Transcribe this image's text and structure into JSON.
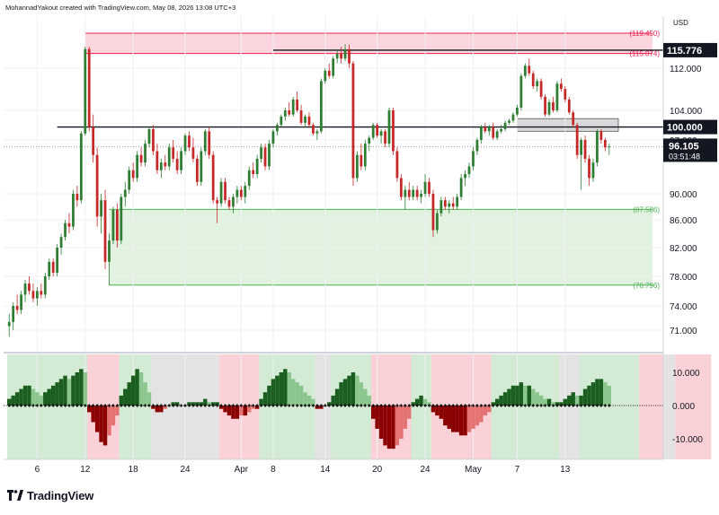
{
  "header": {
    "credit": "MohannadYakout created with TradingView.com, May 08, 2026 13:08 UTC+3"
  },
  "footer": {
    "logo_text": "TradingView"
  },
  "price_axis": {
    "currency": "USD",
    "last_price": "96.105",
    "countdown": "03:51:48",
    "badge_high": "115.776",
    "badge_level": "100.000"
  },
  "chart_data": [
    {
      "type": "candlestick",
      "title": "",
      "x_ticks": [
        "6",
        "12",
        "18",
        "24",
        "Apr",
        "8",
        "14",
        "20",
        "24",
        "May",
        "7",
        "13"
      ],
      "y_ticks": [
        "112.000",
        "104.000",
        "97.000",
        "90.000",
        "86.000",
        "82.000",
        "78.000",
        "74.000",
        "71.000"
      ],
      "ylim": [
        69,
        121
      ],
      "zones": [
        {
          "kind": "supply",
          "top": 119.45,
          "bottom": 115.074,
          "top_label": "(119.450)",
          "bottom_label": "(115.074)",
          "color": "#e91e4c"
        },
        {
          "kind": "demand",
          "top": 87.586,
          "bottom": 76.796,
          "top_label": "(87.586)",
          "bottom_label": "(76.796)",
          "color": "#4caf50"
        }
      ],
      "levels": [
        {
          "value": 115.776,
          "label": "115.776"
        },
        {
          "value": 100.0,
          "label": "100.000"
        }
      ],
      "last_price": 96.105,
      "candles": [
        [
          71.5,
          73.0,
          70.0,
          72.0
        ],
        [
          72.0,
          74.5,
          71.0,
          74.0
        ],
        [
          74.0,
          75.5,
          73.0,
          73.5
        ],
        [
          73.5,
          76.0,
          73.0,
          75.5
        ],
        [
          75.5,
          77.5,
          74.5,
          77.0
        ],
        [
          77.0,
          78.0,
          75.5,
          76.0
        ],
        [
          76.0,
          77.0,
          74.5,
          75.0
        ],
        [
          75.0,
          76.5,
          74.0,
          76.0
        ],
        [
          76.0,
          77.0,
          75.0,
          75.5
        ],
        [
          75.5,
          78.5,
          75.0,
          78.0
        ],
        [
          78.0,
          80.5,
          77.5,
          80.0
        ],
        [
          80.0,
          80.5,
          78.0,
          78.5
        ],
        [
          78.5,
          82.5,
          78.0,
          82.0
        ],
        [
          82.0,
          84.0,
          81.0,
          83.5
        ],
        [
          83.5,
          86.0,
          83.0,
          85.5
        ],
        [
          85.5,
          87.0,
          84.0,
          85.0
        ],
        [
          85.0,
          90.5,
          84.5,
          90.0
        ],
        [
          90.0,
          91.0,
          88.0,
          89.0
        ],
        [
          89.0,
          99.0,
          88.5,
          98.5
        ],
        [
          98.5,
          116.5,
          98.0,
          116.0
        ],
        [
          116.0,
          116.5,
          99.0,
          100.0
        ],
        [
          100.0,
          103.0,
          94.0,
          95.0
        ],
        [
          95.0,
          96.0,
          85.0,
          86.5
        ],
        [
          86.5,
          90.0,
          84.0,
          89.0
        ],
        [
          89.0,
          90.5,
          79.0,
          80.0
        ],
        [
          80.0,
          84.0,
          76.8,
          83.0
        ],
        [
          83.0,
          88.0,
          82.5,
          87.5
        ],
        [
          87.5,
          88.5,
          82.0,
          83.0
        ],
        [
          83.0,
          90.0,
          82.5,
          89.5
        ],
        [
          89.5,
          91.5,
          88.0,
          90.5
        ],
        [
          90.5,
          93.5,
          90.0,
          93.0
        ],
        [
          93.0,
          94.0,
          91.5,
          92.0
        ],
        [
          92.0,
          95.5,
          91.5,
          95.0
        ],
        [
          95.0,
          96.0,
          93.5,
          94.0
        ],
        [
          94.0,
          97.0,
          93.5,
          96.5
        ],
        [
          96.5,
          100.0,
          96.0,
          99.5
        ],
        [
          99.5,
          100.5,
          95.0,
          95.5
        ],
        [
          95.5,
          96.5,
          92.5,
          93.0
        ],
        [
          93.0,
          94.5,
          92.0,
          94.0
        ],
        [
          94.0,
          95.0,
          93.0,
          93.5
        ],
        [
          93.5,
          96.5,
          93.0,
          96.0
        ],
        [
          96.0,
          97.0,
          94.0,
          94.5
        ],
        [
          94.5,
          95.5,
          92.5,
          93.0
        ],
        [
          93.0,
          96.0,
          92.5,
          95.5
        ],
        [
          95.5,
          98.5,
          95.0,
          98.0
        ],
        [
          98.0,
          99.0,
          95.5,
          96.0
        ],
        [
          96.0,
          97.5,
          94.0,
          94.5
        ],
        [
          94.5,
          95.0,
          91.0,
          91.5
        ],
        [
          91.5,
          96.0,
          91.0,
          95.5
        ],
        [
          95.5,
          99.5,
          95.0,
          99.0
        ],
        [
          99.0,
          100.0,
          94.5,
          95.0
        ],
        [
          95.0,
          95.5,
          88.5,
          89.0
        ],
        [
          89.0,
          89.5,
          85.5,
          88.5
        ],
        [
          88.5,
          92.0,
          88.0,
          91.5
        ],
        [
          91.5,
          92.0,
          88.5,
          89.0
        ],
        [
          89.0,
          89.5,
          87.5,
          88.0
        ],
        [
          88.0,
          90.0,
          87.0,
          89.5
        ],
        [
          89.5,
          91.0,
          88.5,
          90.5
        ],
        [
          90.5,
          91.0,
          89.0,
          89.5
        ],
        [
          89.5,
          91.5,
          88.5,
          91.0
        ],
        [
          91.0,
          93.5,
          90.5,
          93.0
        ],
        [
          93.0,
          94.0,
          92.0,
          92.5
        ],
        [
          92.5,
          95.0,
          92.0,
          94.5
        ],
        [
          94.5,
          96.5,
          94.0,
          96.0
        ],
        [
          96.0,
          96.5,
          93.0,
          93.5
        ],
        [
          93.5,
          97.0,
          93.0,
          96.5
        ],
        [
          96.5,
          99.5,
          96.0,
          99.0
        ],
        [
          99.0,
          101.0,
          98.0,
          100.5
        ],
        [
          100.5,
          103.0,
          100.0,
          102.5
        ],
        [
          102.5,
          104.5,
          101.5,
          104.0
        ],
        [
          104.0,
          105.5,
          102.5,
          103.0
        ],
        [
          103.0,
          106.5,
          102.5,
          106.0
        ],
        [
          106.0,
          107.5,
          103.5,
          104.0
        ],
        [
          104.0,
          105.0,
          100.5,
          101.0
        ],
        [
          101.0,
          103.0,
          100.0,
          102.5
        ],
        [
          102.5,
          103.5,
          100.0,
          100.5
        ],
        [
          100.5,
          101.0,
          98.0,
          98.5
        ],
        [
          98.5,
          99.5,
          97.0,
          99.0
        ],
        [
          99.0,
          110.0,
          98.5,
          109.5
        ],
        [
          109.5,
          112.0,
          109.0,
          111.5
        ],
        [
          111.5,
          113.0,
          110.0,
          110.5
        ],
        [
          110.5,
          114.5,
          110.0,
          114.0
        ],
        [
          114.0,
          116.0,
          113.0,
          115.0
        ],
        [
          115.0,
          116.5,
          113.0,
          114.0
        ],
        [
          114.0,
          117.0,
          113.5,
          116.0
        ],
        [
          116.0,
          117.0,
          112.0,
          113.0
        ],
        [
          113.0,
          113.5,
          91.0,
          92.0
        ],
        [
          92.0,
          95.5,
          91.5,
          95.0
        ],
        [
          95.0,
          96.5,
          93.0,
          93.5
        ],
        [
          93.5,
          97.0,
          93.0,
          96.5
        ],
        [
          96.5,
          98.0,
          95.5,
          97.5
        ],
        [
          97.5,
          101.0,
          97.0,
          100.5
        ],
        [
          100.5,
          101.0,
          97.5,
          98.0
        ],
        [
          98.0,
          99.5,
          96.5,
          99.0
        ],
        [
          99.0,
          99.5,
          96.0,
          96.5
        ],
        [
          96.5,
          104.5,
          96.0,
          104.0
        ],
        [
          104.0,
          104.5,
          95.0,
          95.5
        ],
        [
          95.5,
          96.0,
          91.5,
          92.0
        ],
        [
          92.0,
          92.5,
          89.0,
          89.5
        ],
        [
          89.5,
          91.0,
          87.5,
          90.5
        ],
        [
          90.5,
          91.5,
          89.0,
          89.5
        ],
        [
          89.5,
          91.0,
          89.0,
          90.5
        ],
        [
          90.5,
          91.0,
          89.0,
          89.5
        ],
        [
          89.5,
          90.5,
          88.5,
          90.0
        ],
        [
          90.0,
          92.5,
          89.5,
          91.5
        ],
        [
          91.5,
          92.0,
          89.5,
          90.0
        ],
        [
          90.0,
          90.5,
          83.5,
          84.5
        ],
        [
          84.5,
          87.5,
          84.0,
          87.0
        ],
        [
          87.0,
          89.5,
          86.5,
          89.0
        ],
        [
          89.0,
          89.5,
          87.5,
          88.0
        ],
        [
          88.0,
          89.0,
          87.0,
          88.5
        ],
        [
          88.5,
          89.5,
          87.5,
          88.0
        ],
        [
          88.0,
          90.0,
          87.5,
          89.5
        ],
        [
          89.5,
          92.5,
          89.0,
          92.0
        ],
        [
          92.0,
          93.0,
          91.0,
          92.5
        ],
        [
          92.5,
          94.0,
          92.0,
          93.5
        ],
        [
          93.5,
          96.0,
          93.0,
          95.5
        ],
        [
          95.5,
          97.5,
          95.0,
          97.0
        ],
        [
          97.0,
          100.5,
          96.5,
          100.0
        ],
        [
          100.0,
          101.0,
          98.5,
          99.0
        ],
        [
          99.0,
          100.5,
          98.0,
          100.0
        ],
        [
          100.0,
          101.0,
          97.0,
          97.5
        ],
        [
          97.5,
          99.5,
          97.0,
          99.0
        ],
        [
          99.0,
          100.5,
          98.5,
          99.5
        ],
        [
          99.5,
          101.5,
          99.0,
          101.0
        ],
        [
          101.0,
          102.0,
          100.5,
          101.5
        ],
        [
          101.5,
          103.5,
          101.0,
          103.0
        ],
        [
          103.0,
          105.0,
          102.5,
          104.5
        ],
        [
          104.5,
          111.0,
          104.0,
          110.5
        ],
        [
          110.5,
          113.0,
          110.0,
          112.5
        ],
        [
          112.5,
          114.0,
          110.5,
          111.0
        ],
        [
          111.0,
          111.5,
          108.0,
          108.5
        ],
        [
          108.5,
          110.0,
          107.5,
          109.5
        ],
        [
          109.5,
          110.0,
          106.0,
          106.5
        ],
        [
          106.5,
          107.0,
          102.5,
          103.0
        ],
        [
          103.0,
          106.0,
          102.5,
          105.5
        ],
        [
          105.5,
          106.5,
          103.5,
          104.0
        ],
        [
          104.0,
          109.5,
          103.5,
          109.0
        ],
        [
          109.0,
          110.0,
          107.5,
          108.0
        ],
        [
          108.0,
          108.5,
          105.5,
          106.0
        ],
        [
          106.0,
          106.5,
          103.0,
          103.5
        ],
        [
          103.5,
          104.0,
          100.0,
          100.5
        ],
        [
          100.5,
          101.0,
          94.5,
          95.0
        ],
        [
          95.0,
          97.5,
          90.5,
          97.0
        ],
        [
          97.0,
          98.0,
          94.0,
          94.5
        ],
        [
          94.5,
          95.0,
          91.0,
          92.0
        ],
        [
          92.0,
          94.5,
          91.5,
          94.0
        ],
        [
          94.0,
          99.5,
          93.5,
          99.0
        ],
        [
          99.0,
          99.5,
          96.5,
          97.0
        ],
        [
          97.0,
          97.5,
          95.5,
          96.0
        ],
        [
          96.0,
          96.5,
          95.0,
          96.1
        ]
      ]
    },
    {
      "type": "histogram",
      "title": "",
      "y_ticks": [
        "10.000",
        "0.000",
        "-10.000"
      ],
      "ylim": [
        -14,
        15
      ],
      "regimes": [
        {
          "state": "green",
          "bars": 20
        },
        {
          "state": "red",
          "bars": 8
        },
        {
          "state": "green",
          "bars": 8
        },
        {
          "state": "gray",
          "bars": 17
        },
        {
          "state": "red",
          "bars": 10
        },
        {
          "state": "green",
          "bars": 14
        },
        {
          "state": "gray",
          "bars": 4
        },
        {
          "state": "green",
          "bars": 10
        },
        {
          "state": "red",
          "bars": 10
        },
        {
          "state": "green",
          "bars": 5
        },
        {
          "state": "red",
          "bars": 15
        },
        {
          "state": "green",
          "bars": 17
        },
        {
          "state": "gray",
          "bars": 5
        },
        {
          "state": "green",
          "bars": 15
        },
        {
          "state": "red",
          "bars": 6
        },
        {
          "state": "gray",
          "bars": 3
        },
        {
          "state": "red",
          "bars": 9
        }
      ],
      "values": [
        2,
        3,
        4,
        5,
        6,
        6,
        5,
        4,
        3,
        4,
        5,
        6,
        7,
        8,
        9,
        8,
        9,
        10,
        11,
        10,
        -2,
        -5,
        -8,
        -11,
        -12,
        -9,
        -6,
        -3,
        3,
        5,
        7,
        9,
        11,
        10,
        7,
        4,
        -1,
        -2,
        -2,
        -1,
        0,
        1,
        1,
        0,
        0,
        1,
        1,
        1,
        1,
        2,
        1,
        1,
        1,
        -1,
        -2,
        -3,
        -4,
        -4,
        -3,
        -3,
        -2,
        -1,
        -1,
        2,
        4,
        6,
        8,
        9,
        10,
        11,
        10,
        8,
        7,
        6,
        4,
        3,
        2,
        -1,
        -1,
        0,
        1,
        3,
        5,
        7,
        8,
        9,
        10,
        9,
        7,
        5,
        3,
        -4,
        -7,
        -10,
        -12,
        -13,
        -13,
        -12,
        -10,
        -7,
        -4,
        1,
        2,
        3,
        2,
        1,
        -2,
        -3,
        -4,
        -6,
        -7,
        -8,
        -8,
        -9,
        -9,
        -8,
        -7,
        -6,
        -5,
        -3,
        -2,
        1,
        2,
        3,
        4,
        5,
        6,
        6,
        7,
        6,
        6,
        5,
        4,
        3,
        2,
        2,
        1,
        1,
        1,
        2,
        3,
        4,
        3,
        3,
        5,
        6,
        7,
        8,
        8,
        7,
        6,
        5,
        4,
        3,
        2,
        2,
        1,
        1,
        -1,
        -2,
        -3,
        -4,
        -3,
        -2,
        -1,
        -1,
        -2,
        -3,
        -4,
        -5,
        -6,
        -7,
        -6,
        -5,
        -4,
        -3
      ]
    }
  ]
}
